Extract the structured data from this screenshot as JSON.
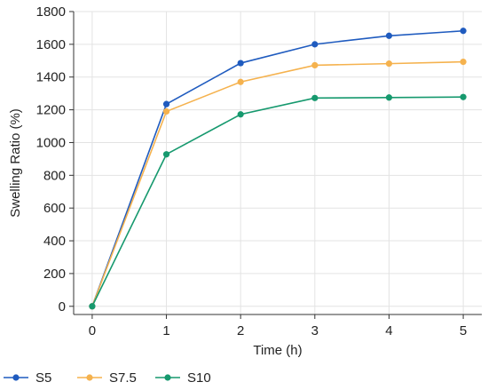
{
  "chart_data": {
    "type": "line",
    "title": "",
    "xlabel": "Time (h)",
    "ylabel": "Swelling Ratio (%)",
    "x": [
      0,
      1,
      2,
      3,
      4,
      5
    ],
    "x_ticks": [
      "0",
      "1",
      "2",
      "3",
      "4",
      "5"
    ],
    "xlim": [
      -0.25,
      5.25
    ],
    "ylim": [
      -50,
      1800
    ],
    "y_ticks": [
      "0",
      "200",
      "400",
      "600",
      "800",
      "1000",
      "1200",
      "1400",
      "1600",
      "1800"
    ],
    "grid": true,
    "legend_position": "bottom",
    "series": [
      {
        "name": "S5",
        "color": "#1f5bbf",
        "values": [
          0,
          1235,
          1485,
          1600,
          1652,
          1682
        ]
      },
      {
        "name": "S7.5",
        "color": "#f5b24e",
        "values": [
          0,
          1190,
          1370,
          1472,
          1482,
          1493
        ]
      },
      {
        "name": "S10",
        "color": "#16996e",
        "values": [
          0,
          928,
          1172,
          1272,
          1275,
          1278
        ]
      }
    ]
  }
}
